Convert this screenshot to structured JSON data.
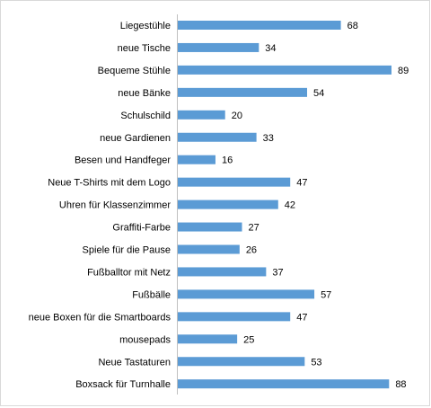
{
  "chart_data": {
    "type": "bar",
    "orientation": "horizontal",
    "categories": [
      "Liegestühle",
      "neue Tische",
      "Bequeme Stühle",
      "neue Bänke",
      "Schulschild",
      "neue Gardienen",
      "Besen und Handfeger",
      "Neue T-Shirts mit dem Logo",
      "Uhren für Klassenzimmer",
      "Graffiti-Farbe",
      "Spiele für die Pause",
      "Fußballtor mit Netz",
      "Fußbälle",
      "neue Boxen für die Smartboards",
      "mousepads",
      "Neue Tastaturen",
      "Boxsack für Turnhalle"
    ],
    "values": [
      68,
      34,
      89,
      54,
      20,
      33,
      16,
      47,
      42,
      27,
      26,
      37,
      57,
      47,
      25,
      53,
      88
    ],
    "title": "",
    "xlabel": "",
    "ylabel": "",
    "xlim": [
      0,
      90
    ],
    "grid": false,
    "legend": "none",
    "data_labels": true,
    "bar_color": "#5b9bd5",
    "axis_color": "#bfbfbf"
  }
}
